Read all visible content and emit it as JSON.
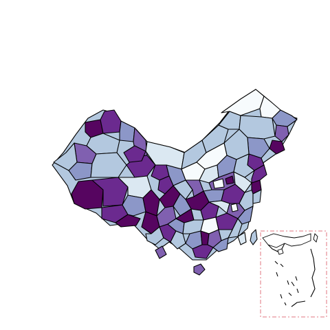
{
  "map": {
    "type": "choropleth",
    "palette": {
      "c0": "#f7fbfd",
      "c1": "#dbe8f2",
      "c2": "#b3c8df",
      "c3": "#8c97c8",
      "c4": "#8060b0",
      "c5": "#6b2a8f",
      "c6": "#560560"
    },
    "outline_color": "#000000",
    "inset_frame_color": "#e2757f",
    "has_legend": false,
    "has_title": false,
    "inset": "south-china-sea"
  }
}
